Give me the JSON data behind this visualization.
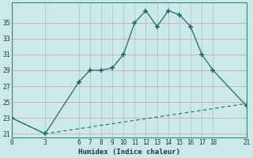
{
  "xlabel": "Humidex (Indice chaleur)",
  "bg_color": "#cce8e8",
  "line_color": "#1a6e6a",
  "grid_color": "#aacaca",
  "grid_color_red": "#d4a8a8",
  "line1_x": [
    0,
    3,
    6,
    7,
    8,
    9,
    10,
    11,
    12,
    13,
    14,
    15,
    16,
    17,
    18,
    21
  ],
  "line1_y": [
    23,
    21,
    27.5,
    29,
    29,
    29.3,
    31,
    35,
    36.5,
    34.5,
    36.5,
    36,
    34.5,
    31,
    29,
    24.5
  ],
  "line2_x": [
    0,
    3,
    21
  ],
  "line2_y": [
    23,
    21,
    24.8
  ],
  "xticks": [
    0,
    3,
    6,
    7,
    8,
    9,
    10,
    11,
    12,
    13,
    14,
    15,
    16,
    17,
    18,
    21
  ],
  "yticks": [
    21,
    23,
    25,
    27,
    29,
    31,
    33,
    35
  ],
  "xlim": [
    0,
    21
  ],
  "ylim": [
    20.5,
    37.5
  ]
}
